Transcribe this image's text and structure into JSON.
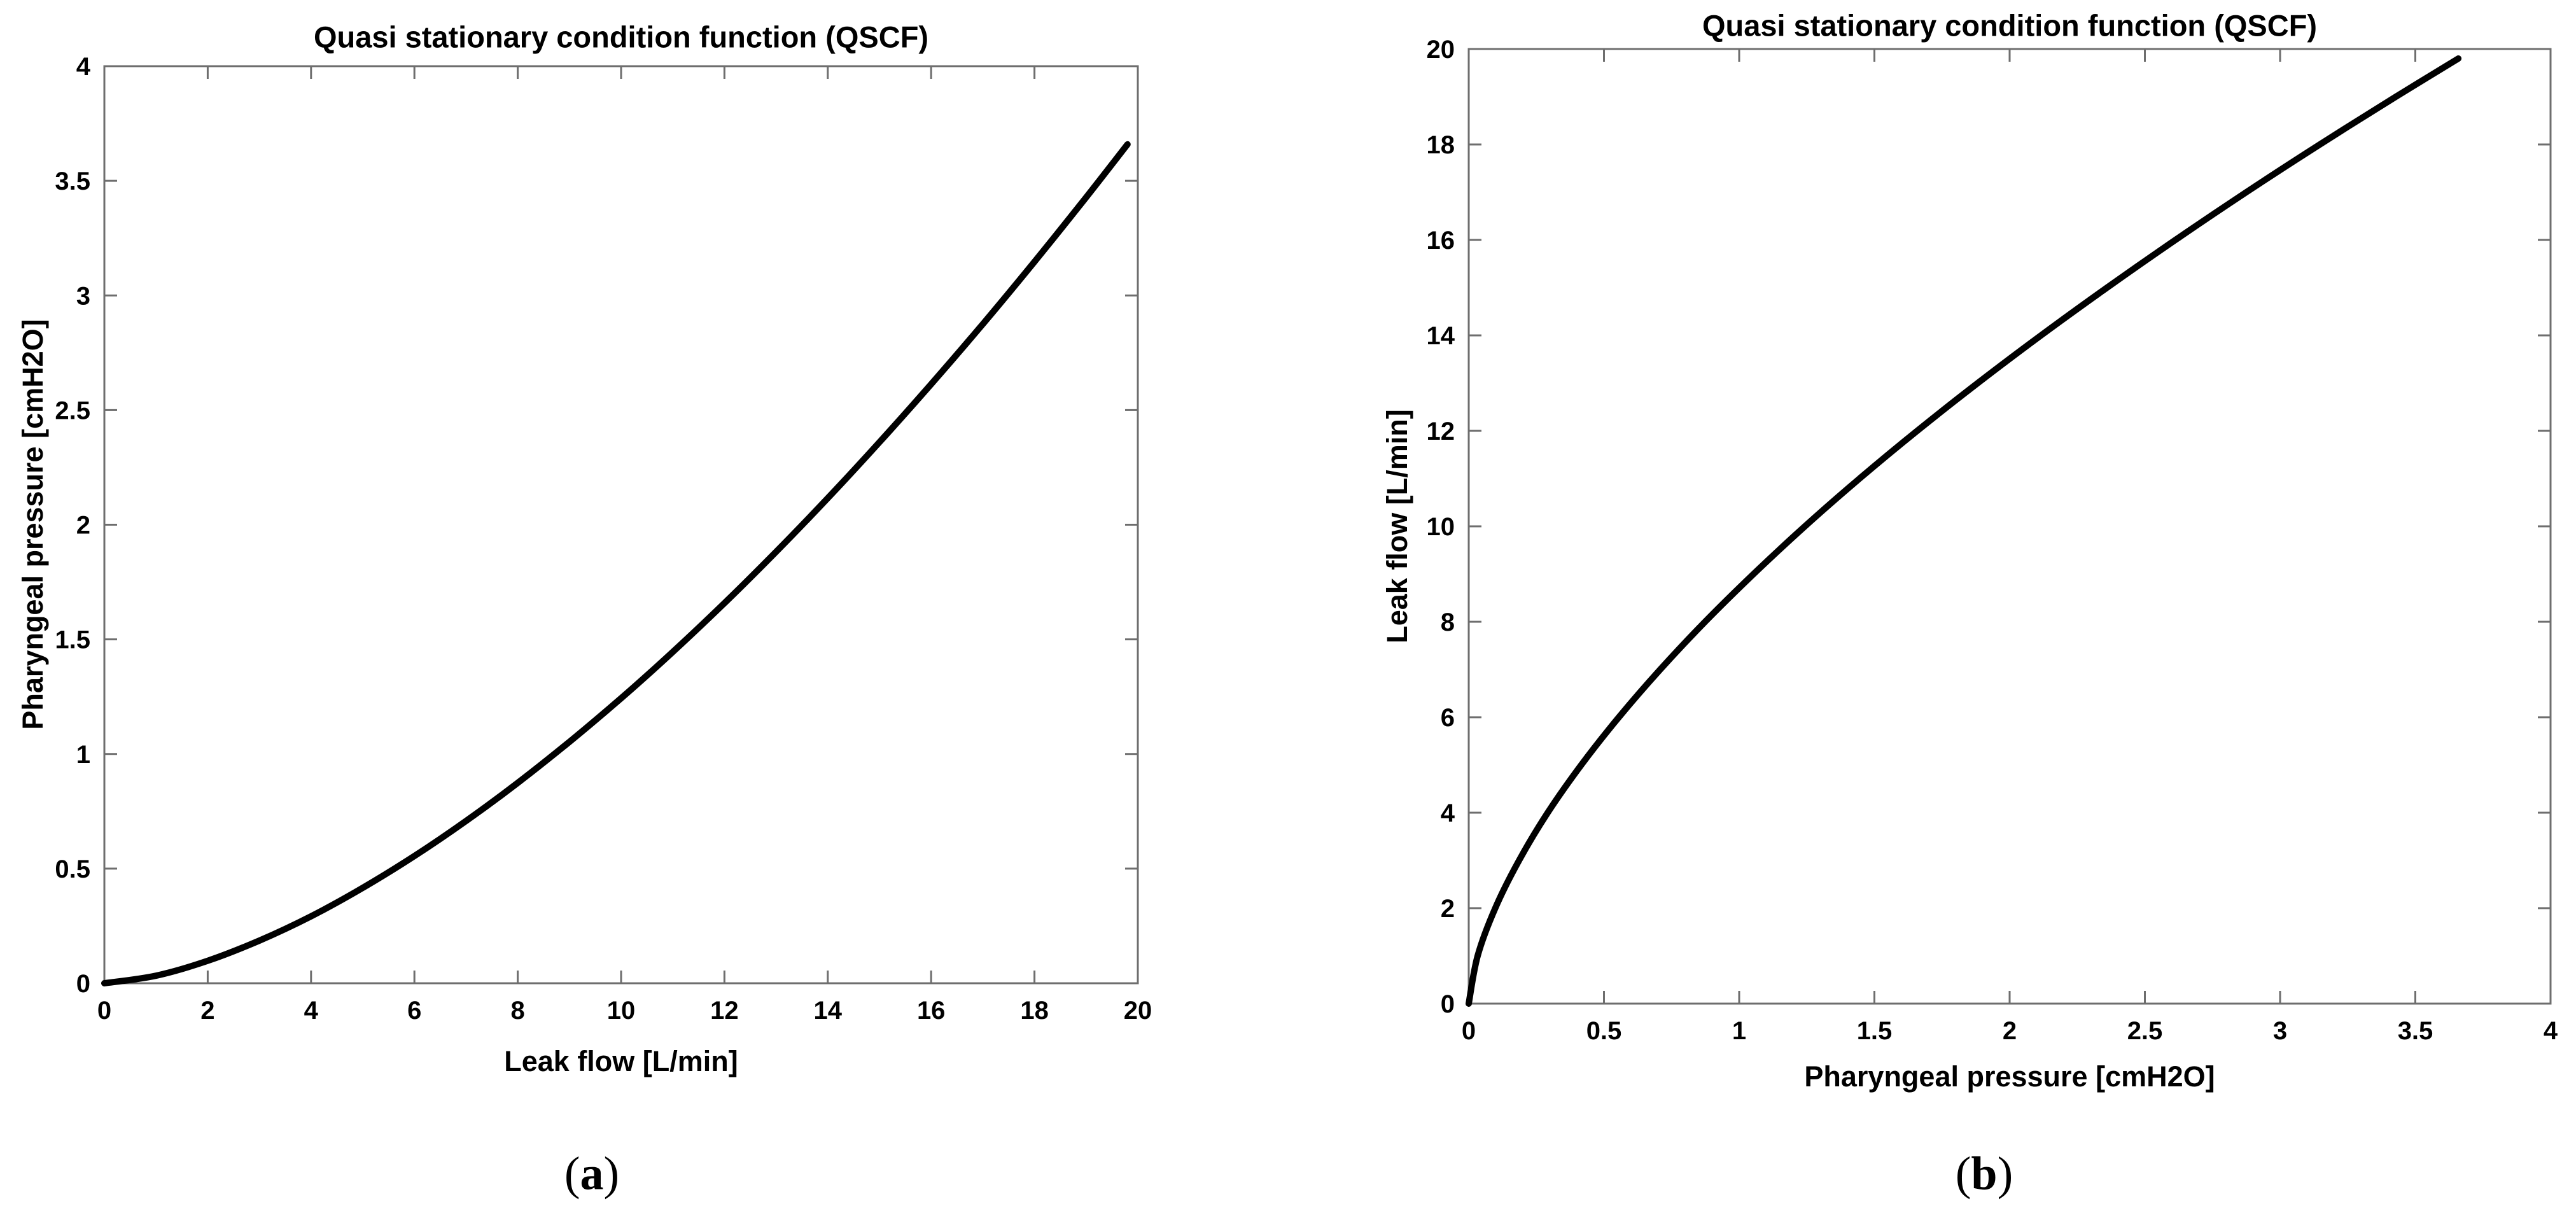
{
  "figure": {
    "background": "#ffffff",
    "curve_color": "#000000",
    "axis_color": "#6e6e6e",
    "text_color": "#000000"
  },
  "chart_data": [
    {
      "id": "a",
      "type": "line",
      "title": "Quasi stationary condition function (QSCF)",
      "xlabel": "Leak flow [L/min]",
      "ylabel": "Pharyngeal pressure [cmH2O]",
      "xlim": [
        0,
        20
      ],
      "ylim": [
        0,
        4
      ],
      "xticks": [
        0,
        2,
        4,
        6,
        8,
        10,
        12,
        14,
        16,
        18,
        20
      ],
      "yticks": [
        0,
        0.5,
        1,
        1.5,
        2,
        2.5,
        3,
        3.5,
        4
      ],
      "grid": false,
      "legend": null,
      "caption": {
        "open": "(",
        "letter": "a",
        "close": ")"
      },
      "series": [
        {
          "name": "QSCF",
          "points": [
            [
              0,
              0
            ],
            [
              1,
              0.033
            ],
            [
              2,
              0.098
            ],
            [
              3,
              0.186
            ],
            [
              4,
              0.292
            ],
            [
              5,
              0.416
            ],
            [
              6,
              0.555
            ],
            [
              7,
              0.708
            ],
            [
              8,
              0.874
            ],
            [
              9,
              1.053
            ],
            [
              10,
              1.243
            ],
            [
              11,
              1.445
            ],
            [
              12,
              1.658
            ],
            [
              13,
              1.882
            ],
            [
              14,
              2.116
            ],
            [
              15,
              2.36
            ],
            [
              16,
              2.613
            ],
            [
              17,
              2.875
            ],
            [
              18,
              3.147
            ],
            [
              19,
              3.428
            ],
            [
              19.8,
              3.659
            ]
          ]
        }
      ]
    },
    {
      "id": "b",
      "type": "line",
      "title": "Quasi stationary condition function (QSCF)",
      "xlabel": "Pharyngeal pressure [cmH2O]",
      "ylabel": "Leak flow [L/min]",
      "xlim": [
        0,
        4
      ],
      "ylim": [
        0,
        20
      ],
      "xticks": [
        0,
        0.5,
        1,
        1.5,
        2,
        2.5,
        3,
        3.5,
        4
      ],
      "yticks": [
        0,
        2,
        4,
        6,
        8,
        10,
        12,
        14,
        16,
        18,
        20
      ],
      "grid": false,
      "legend": null,
      "caption": {
        "open": "(",
        "letter": "b",
        "close": ")"
      },
      "series": [
        {
          "name": "QSCF",
          "points": [
            [
              0,
              0
            ],
            [
              0.033,
              1
            ],
            [
              0.098,
              2
            ],
            [
              0.186,
              3
            ],
            [
              0.292,
              4
            ],
            [
              0.416,
              5
            ],
            [
              0.555,
              6
            ],
            [
              0.708,
              7
            ],
            [
              0.874,
              8
            ],
            [
              1.053,
              9
            ],
            [
              1.243,
              10
            ],
            [
              1.445,
              11
            ],
            [
              1.658,
              12
            ],
            [
              1.882,
              13
            ],
            [
              2.116,
              14
            ],
            [
              2.36,
              15
            ],
            [
              2.613,
              16
            ],
            [
              2.875,
              17
            ],
            [
              3.147,
              18
            ],
            [
              3.428,
              19
            ],
            [
              3.659,
              19.8
            ]
          ]
        }
      ]
    }
  ]
}
